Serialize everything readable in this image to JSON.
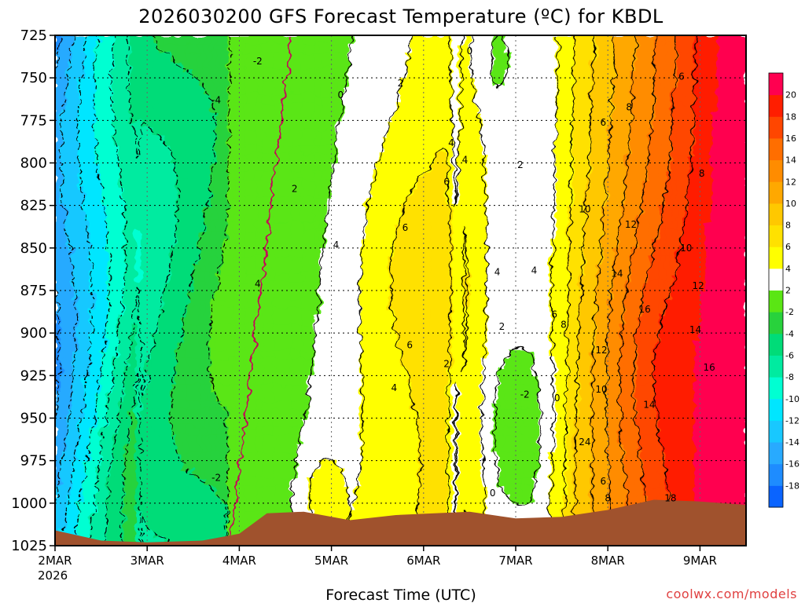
{
  "chart_data": {
    "type": "heatmap",
    "title": "2026030200 GFS Forecast Temperature (ºC) for KBDL",
    "xlabel": "Forecast Time (UTC)",
    "ylabel": "",
    "x_ticks": [
      "2MAR",
      "3MAR",
      "4MAR",
      "5MAR",
      "6MAR",
      "7MAR",
      "8MAR",
      "9MAR"
    ],
    "x_year": "2026",
    "y_ticks": [
      725,
      750,
      775,
      800,
      825,
      850,
      875,
      900,
      925,
      950,
      975,
      1000,
      1025
    ],
    "ylim": [
      1025,
      725
    ],
    "x_range_days": [
      0,
      7.5
    ],
    "y_axis": "pressure (inverted)",
    "grid": true,
    "colorbar": {
      "placement": "right",
      "levels": [
        -20,
        -18,
        -16,
        -14,
        -12,
        -10,
        -8,
        -6,
        -4,
        -2,
        2,
        4,
        6,
        8,
        10,
        12,
        14,
        16,
        18,
        20
      ],
      "labels": [
        "-18",
        "-16",
        "-14",
        "-12",
        "-10",
        "-8",
        "-6",
        "-4",
        "-2",
        "2",
        "4",
        "6",
        "8",
        "10",
        "12",
        "14",
        "16",
        "18",
        "20"
      ],
      "colors": [
        "#0a64ff",
        "#1e8cff",
        "#28aaff",
        "#18c8ff",
        "#00e6ff",
        "#00ffd2",
        "#00eba0",
        "#00dc78",
        "#28d23c",
        "#5ae614",
        "#ffffff",
        "#ffff00",
        "#ffe100",
        "#ffc800",
        "#ffa800",
        "#ff8c00",
        "#ff6e00",
        "#ff4600",
        "#ff1e00",
        "#ff0050"
      ]
    },
    "contour_labels": [
      {
        "text": "-2",
        "x": 2.2,
        "y": 742
      },
      {
        "text": "-4",
        "x": 1.75,
        "y": 765
      },
      {
        "text": "0",
        "x": 3.1,
        "y": 762
      },
      {
        "text": "2",
        "x": 3.75,
        "y": 755
      },
      {
        "text": "0",
        "x": 4.5,
        "y": 736
      },
      {
        "text": "2",
        "x": 2.6,
        "y": 817
      },
      {
        "text": "4",
        "x": 4.3,
        "y": 790
      },
      {
        "text": "4",
        "x": 4.45,
        "y": 800
      },
      {
        "text": "6",
        "x": 4.25,
        "y": 813
      },
      {
        "text": "2",
        "x": 5.05,
        "y": 803
      },
      {
        "text": "6",
        "x": 3.8,
        "y": 840
      },
      {
        "text": "4",
        "x": 3.05,
        "y": 850
      },
      {
        "text": "4",
        "x": 2.2,
        "y": 873
      },
      {
        "text": "4",
        "x": 4.8,
        "y": 866
      },
      {
        "text": "4",
        "x": 5.2,
        "y": 865
      },
      {
        "text": "6",
        "x": 5.42,
        "y": 891
      },
      {
        "text": "2",
        "x": 4.85,
        "y": 898
      },
      {
        "text": "8",
        "x": 5.52,
        "y": 897
      },
      {
        "text": "6",
        "x": 3.85,
        "y": 909
      },
      {
        "text": "2",
        "x": 4.25,
        "y": 920
      },
      {
        "text": "4",
        "x": 3.68,
        "y": 934
      },
      {
        "text": "-2",
        "x": 5.1,
        "y": 938
      },
      {
        "text": "0",
        "x": 5.45,
        "y": 940
      },
      {
        "text": "-2",
        "x": 1.75,
        "y": 987
      },
      {
        "text": "0",
        "x": 4.75,
        "y": 996
      },
      {
        "text": "6",
        "x": 5.95,
        "y": 778
      },
      {
        "text": "6",
        "x": 6.8,
        "y": 751
      },
      {
        "text": "8",
        "x": 6.23,
        "y": 769
      },
      {
        "text": "8",
        "x": 7.02,
        "y": 808
      },
      {
        "text": "10",
        "x": 5.75,
        "y": 829
      },
      {
        "text": "12",
        "x": 6.25,
        "y": 838
      },
      {
        "text": "10",
        "x": 6.85,
        "y": 852
      },
      {
        "text": "14",
        "x": 6.1,
        "y": 867
      },
      {
        "text": "12",
        "x": 6.98,
        "y": 874
      },
      {
        "text": "16",
        "x": 6.4,
        "y": 888
      },
      {
        "text": "14",
        "x": 6.95,
        "y": 900
      },
      {
        "text": "12",
        "x": 5.93,
        "y": 912
      },
      {
        "text": "16",
        "x": 7.1,
        "y": 922
      },
      {
        "text": "10",
        "x": 5.93,
        "y": 935
      },
      {
        "text": "14",
        "x": 6.45,
        "y": 944
      },
      {
        "text": "24",
        "x": 5.75,
        "y": 966
      },
      {
        "text": "6",
        "x": 5.95,
        "y": 989
      },
      {
        "text": "8",
        "x": 6.0,
        "y": 999
      },
      {
        "text": "18",
        "x": 6.68,
        "y": 999
      }
    ]
  },
  "credit": "coolwx.com/models"
}
